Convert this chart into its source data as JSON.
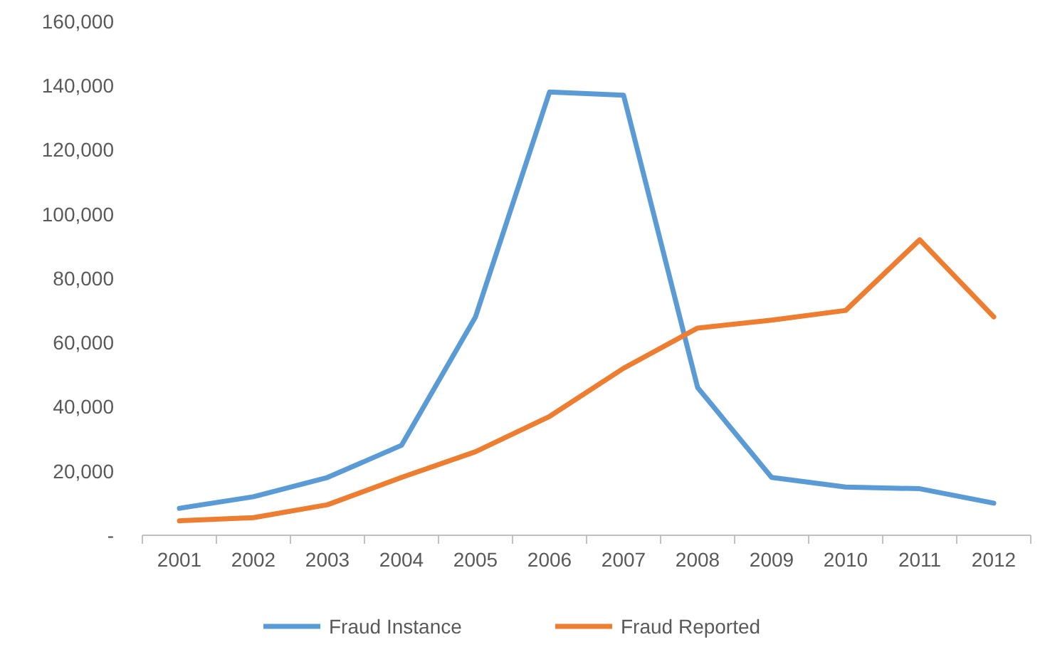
{
  "chart_data": {
    "type": "line",
    "categories": [
      "2001",
      "2002",
      "2003",
      "2004",
      "2005",
      "2006",
      "2007",
      "2008",
      "2009",
      "2010",
      "2011",
      "2012"
    ],
    "series": [
      {
        "name": "Fraud Instance",
        "color": "#5b9bd5",
        "values": [
          8400,
          12000,
          18000,
          28000,
          68000,
          138000,
          137000,
          46000,
          18000,
          15000,
          14500,
          10000
        ]
      },
      {
        "name": "Fraud Reported",
        "color": "#ed7d31",
        "values": [
          4500,
          5500,
          9500,
          18000,
          26000,
          37000,
          52000,
          64500,
          67000,
          70000,
          92000,
          68000
        ]
      }
    ],
    "ylim": [
      0,
      160000
    ],
    "yticks": [
      {
        "value": 0,
        "label": "-"
      },
      {
        "value": 20000,
        "label": "20,000"
      },
      {
        "value": 40000,
        "label": "40,000"
      },
      {
        "value": 60000,
        "label": "60,000"
      },
      {
        "value": 80000,
        "label": "80,000"
      },
      {
        "value": 100000,
        "label": "100,000"
      },
      {
        "value": 120000,
        "label": "120,000"
      },
      {
        "value": 140000,
        "label": "140,000"
      },
      {
        "value": 160000,
        "label": "160,000"
      }
    ],
    "grid": false,
    "legend": "bottom",
    "marker": "none",
    "line_style": "solid"
  }
}
